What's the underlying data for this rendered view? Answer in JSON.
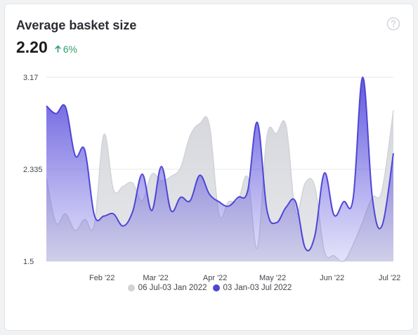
{
  "card": {
    "title": "Average basket size",
    "value": "2.20",
    "delta": "6%",
    "delta_direction": "up",
    "help_icon": "question-circle-icon",
    "delta_icon": "arrow-up-icon"
  },
  "colors": {
    "current": "#4f46d6",
    "previous": "#d1d3d8",
    "delta_positive": "#2f9b6a",
    "grid": "#e6e7ea"
  },
  "chart_data": {
    "type": "area",
    "ylim": [
      1.5,
      3.17
    ],
    "y_ticks": [
      "3.17",
      "2.335",
      "1.5"
    ],
    "y_tick_values": [
      3.17,
      2.335,
      1.5
    ],
    "x_range": [
      "2022-01-03",
      "2022-07-03"
    ],
    "x_ticks": [
      {
        "label": "Feb '22",
        "date": "2022-02-01"
      },
      {
        "label": "Mar '22",
        "date": "2022-03-01"
      },
      {
        "label": "Apr '22",
        "date": "2022-04-01"
      },
      {
        "label": "May '22",
        "date": "2022-05-01"
      },
      {
        "label": "Jun '22",
        "date": "2022-06-01"
      },
      {
        "label": "Jul '22",
        "date": "2022-07-01"
      }
    ],
    "grid": true,
    "legend_position": "bottom-center",
    "series": [
      {
        "name": "06 Jul-03 Jan 2022",
        "color": "#d1d3d8",
        "points": [
          [
            "2022-01-03",
            2.25
          ],
          [
            "2022-01-08",
            1.85
          ],
          [
            "2022-01-13",
            1.93
          ],
          [
            "2022-01-18",
            1.78
          ],
          [
            "2022-01-23",
            1.88
          ],
          [
            "2022-01-28",
            1.83
          ],
          [
            "2022-02-02",
            2.65
          ],
          [
            "2022-02-07",
            2.15
          ],
          [
            "2022-02-12",
            2.18
          ],
          [
            "2022-02-17",
            2.21
          ],
          [
            "2022-02-22",
            2.05
          ],
          [
            "2022-02-27",
            2.29
          ],
          [
            "2022-03-04",
            2.23
          ],
          [
            "2022-03-09",
            2.27
          ],
          [
            "2022-03-14",
            2.35
          ],
          [
            "2022-03-19",
            2.64
          ],
          [
            "2022-03-24",
            2.75
          ],
          [
            "2022-03-29",
            2.74
          ],
          [
            "2022-04-03",
            1.93
          ],
          [
            "2022-04-08",
            2.04
          ],
          [
            "2022-04-13",
            2.05
          ],
          [
            "2022-04-18",
            2.26
          ],
          [
            "2022-04-23",
            1.62
          ],
          [
            "2022-04-28",
            2.63
          ],
          [
            "2022-05-03",
            2.66
          ],
          [
            "2022-05-08",
            2.73
          ],
          [
            "2022-05-13",
            1.95
          ],
          [
            "2022-05-18",
            2.21
          ],
          [
            "2022-05-23",
            2.18
          ],
          [
            "2022-05-28",
            1.59
          ],
          [
            "2022-06-02",
            1.55
          ],
          [
            "2022-06-07",
            1.5
          ],
          [
            "2022-06-12",
            1.65
          ],
          [
            "2022-06-17",
            1.86
          ],
          [
            "2022-06-22",
            2.08
          ],
          [
            "2022-06-27",
            2.14
          ],
          [
            "2022-07-03",
            2.87
          ]
        ]
      },
      {
        "name": "03 Jan-03 Jul 2022",
        "color": "#4f46d6",
        "points": [
          [
            "2022-01-03",
            2.91
          ],
          [
            "2022-01-08",
            2.84
          ],
          [
            "2022-01-13",
            2.9
          ],
          [
            "2022-01-18",
            2.46
          ],
          [
            "2022-01-23",
            2.51
          ],
          [
            "2022-01-28",
            1.92
          ],
          [
            "2022-02-02",
            1.91
          ],
          [
            "2022-02-07",
            1.93
          ],
          [
            "2022-02-12",
            1.82
          ],
          [
            "2022-02-17",
            1.95
          ],
          [
            "2022-02-22",
            2.29
          ],
          [
            "2022-02-27",
            1.96
          ],
          [
            "2022-03-04",
            2.36
          ],
          [
            "2022-03-09",
            1.96
          ],
          [
            "2022-03-14",
            2.08
          ],
          [
            "2022-03-19",
            2.05
          ],
          [
            "2022-03-24",
            2.28
          ],
          [
            "2022-03-29",
            2.11
          ],
          [
            "2022-04-03",
            2.04
          ],
          [
            "2022-04-08",
            2.0
          ],
          [
            "2022-04-13",
            2.08
          ],
          [
            "2022-04-18",
            2.14
          ],
          [
            "2022-04-23",
            2.76
          ],
          [
            "2022-04-28",
            1.97
          ],
          [
            "2022-05-03",
            1.85
          ],
          [
            "2022-05-08",
            1.99
          ],
          [
            "2022-05-13",
            2.04
          ],
          [
            "2022-05-18",
            1.62
          ],
          [
            "2022-05-23",
            1.73
          ],
          [
            "2022-05-28",
            2.3
          ],
          [
            "2022-06-02",
            1.92
          ],
          [
            "2022-06-07",
            2.04
          ],
          [
            "2022-06-12",
            2.07
          ],
          [
            "2022-06-17",
            3.17
          ],
          [
            "2022-06-22",
            2.08
          ],
          [
            "2022-06-27",
            1.82
          ],
          [
            "2022-07-03",
            2.48
          ]
        ]
      }
    ]
  }
}
